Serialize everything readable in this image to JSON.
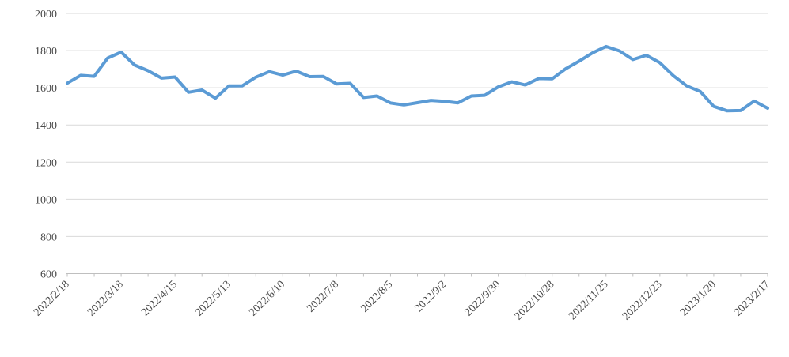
{
  "chart_data": {
    "type": "line",
    "title": "",
    "xlabel": "",
    "ylabel": "",
    "ylim": [
      600,
      2000
    ],
    "y_tick_labels": [
      "600",
      "800",
      "1000",
      "1200",
      "1400",
      "1600",
      "1800",
      "2000"
    ],
    "x_axis_labels": [
      "2022/2/18",
      "2022/3/18",
      "2022/4/15",
      "2022/5/13",
      "2022/6/10",
      "2022/7/8",
      "2022/8/5",
      "2022/9/2",
      "2022/9/30",
      "2022/10/28",
      "2022/11/25",
      "2022/12/23",
      "2023/1/20",
      "2023/2/17"
    ],
    "x_label_every_n_points": 4,
    "x_tick_every_n_points": 2,
    "grid": true,
    "legend": false,
    "x": [
      "2022/2/18",
      "2022/2/25",
      "2022/3/4",
      "2022/3/11",
      "2022/3/18",
      "2022/3/25",
      "2022/4/1",
      "2022/4/8",
      "2022/4/15",
      "2022/4/22",
      "2022/4/29",
      "2022/5/6",
      "2022/5/13",
      "2022/5/20",
      "2022/5/27",
      "2022/6/3",
      "2022/6/10",
      "2022/6/17",
      "2022/6/24",
      "2022/7/1",
      "2022/7/8",
      "2022/7/15",
      "2022/7/22",
      "2022/7/29",
      "2022/8/5",
      "2022/8/12",
      "2022/8/19",
      "2022/8/26",
      "2022/9/2",
      "2022/9/9",
      "2022/9/16",
      "2022/9/23",
      "2022/9/30",
      "2022/10/7",
      "2022/10/14",
      "2022/10/21",
      "2022/10/28",
      "2022/11/4",
      "2022/11/11",
      "2022/11/18",
      "2022/11/25",
      "2022/12/2",
      "2022/12/9",
      "2022/12/16",
      "2022/12/23",
      "2022/12/30",
      "2023/1/6",
      "2023/1/13",
      "2023/1/20",
      "2023/1/27",
      "2023/2/3",
      "2023/2/10",
      "2023/2/17"
    ],
    "series": [
      {
        "name": "value",
        "color": "#5B9BD5",
        "values": [
          1625,
          1667,
          1662,
          1760,
          1792,
          1722,
          1692,
          1652,
          1658,
          1576,
          1588,
          1544,
          1610,
          1611,
          1657,
          1687,
          1668,
          1690,
          1660,
          1661,
          1621,
          1624,
          1548,
          1556,
          1518,
          1508,
          1520,
          1532,
          1527,
          1519,
          1556,
          1560,
          1605,
          1632,
          1615,
          1650,
          1648,
          1702,
          1743,
          1788,
          1822,
          1798,
          1752,
          1775,
          1735,
          1665,
          1610,
          1580,
          1500,
          1476,
          1478,
          1529,
          1490
        ]
      }
    ],
    "colors": {
      "series_line": "#5B9BD5",
      "gridline": "#D9D9D9",
      "axis_line": "#BFBFBF",
      "tick_mark": "#BFBFBF",
      "label_text": "#4a4a4a",
      "background": "#ffffff"
    }
  }
}
